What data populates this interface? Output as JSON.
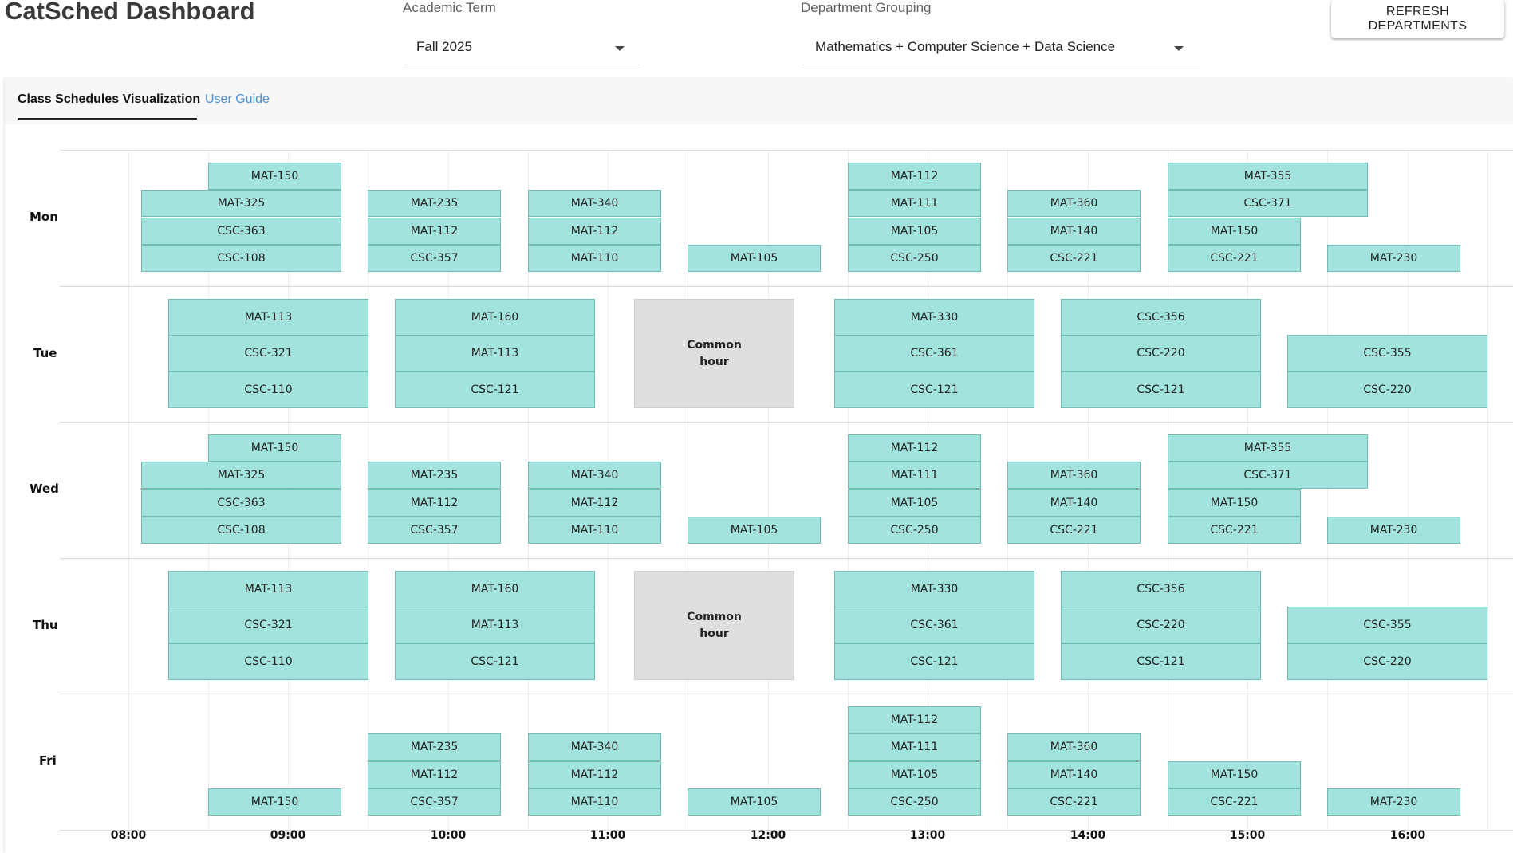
{
  "app": {
    "title": "CatSched Dashboard"
  },
  "filters": {
    "term": {
      "label": "Academic Term",
      "value": "Fall 2025"
    },
    "department": {
      "label": "Department Grouping",
      "value": "Mathematics + Computer Science + Data Science"
    }
  },
  "refresh_label": "REFRESH DEPARTMENTS",
  "tabs": [
    {
      "label": "Class Schedules Visualization",
      "active": true
    },
    {
      "label": "User Guide",
      "active": false
    }
  ],
  "colors": {
    "class_block": "#a3e3dd",
    "common_hour": "#dedede",
    "link": "#4a90d9"
  },
  "chart_data": {
    "type": "timeline",
    "x_ticks": [
      "08:00",
      "09:00",
      "10:00",
      "11:00",
      "12:00",
      "13:00",
      "14:00",
      "15:00",
      "16:00"
    ],
    "x_range": [
      "07:35",
      "16:50"
    ],
    "days": [
      {
        "name": "Mon",
        "slots": 4,
        "blocks": [
          {
            "course": "MAT-150",
            "start": "08:30",
            "end": "09:20",
            "slot": 0
          },
          {
            "course": "MAT-325",
            "start": "08:05",
            "end": "09:20",
            "slot": 1
          },
          {
            "course": "CSC-363",
            "start": "08:05",
            "end": "09:20",
            "slot": 2
          },
          {
            "course": "CSC-108",
            "start": "08:05",
            "end": "09:20",
            "slot": 3
          },
          {
            "course": "MAT-235",
            "start": "09:30",
            "end": "10:20",
            "slot": 1
          },
          {
            "course": "MAT-112",
            "start": "09:30",
            "end": "10:20",
            "slot": 2
          },
          {
            "course": "CSC-357",
            "start": "09:30",
            "end": "10:20",
            "slot": 3
          },
          {
            "course": "MAT-340",
            "start": "10:30",
            "end": "11:20",
            "slot": 1
          },
          {
            "course": "MAT-112",
            "start": "10:30",
            "end": "11:20",
            "slot": 2
          },
          {
            "course": "MAT-110",
            "start": "10:30",
            "end": "11:20",
            "slot": 3
          },
          {
            "course": "MAT-105",
            "start": "11:30",
            "end": "12:20",
            "slot": 3
          },
          {
            "course": "MAT-112",
            "start": "12:30",
            "end": "13:20",
            "slot": 0
          },
          {
            "course": "MAT-111",
            "start": "12:30",
            "end": "13:20",
            "slot": 1
          },
          {
            "course": "MAT-105",
            "start": "12:30",
            "end": "13:20",
            "slot": 2
          },
          {
            "course": "CSC-250",
            "start": "12:30",
            "end": "13:20",
            "slot": 3
          },
          {
            "course": "MAT-360",
            "start": "13:30",
            "end": "14:20",
            "slot": 1
          },
          {
            "course": "MAT-140",
            "start": "13:30",
            "end": "14:20",
            "slot": 2
          },
          {
            "course": "CSC-221",
            "start": "13:30",
            "end": "14:20",
            "slot": 3
          },
          {
            "course": "MAT-355",
            "start": "14:30",
            "end": "15:45",
            "slot": 0
          },
          {
            "course": "CSC-371",
            "start": "14:30",
            "end": "15:45",
            "slot": 1
          },
          {
            "course": "MAT-150",
            "start": "14:30",
            "end": "15:20",
            "slot": 2
          },
          {
            "course": "CSC-221",
            "start": "14:30",
            "end": "15:20",
            "slot": 3
          },
          {
            "course": "MAT-230",
            "start": "15:30",
            "end": "16:20",
            "slot": 3
          }
        ]
      },
      {
        "name": "Tue",
        "slots": 3,
        "common": {
          "label": "Common hour",
          "start": "11:10",
          "end": "12:10"
        },
        "blocks": [
          {
            "course": "MAT-113",
            "start": "08:15",
            "end": "09:30",
            "slot": 0
          },
          {
            "course": "CSC-321",
            "start": "08:15",
            "end": "09:30",
            "slot": 1
          },
          {
            "course": "CSC-110",
            "start": "08:15",
            "end": "09:30",
            "slot": 2
          },
          {
            "course": "MAT-160",
            "start": "09:40",
            "end": "10:55",
            "slot": 0
          },
          {
            "course": "MAT-113",
            "start": "09:40",
            "end": "10:55",
            "slot": 1
          },
          {
            "course": "CSC-121",
            "start": "09:40",
            "end": "10:55",
            "slot": 2
          },
          {
            "course": "MAT-330",
            "start": "12:25",
            "end": "13:40",
            "slot": 0
          },
          {
            "course": "CSC-361",
            "start": "12:25",
            "end": "13:40",
            "slot": 1
          },
          {
            "course": "CSC-121",
            "start": "12:25",
            "end": "13:40",
            "slot": 2
          },
          {
            "course": "CSC-356",
            "start": "13:50",
            "end": "15:05",
            "slot": 0
          },
          {
            "course": "CSC-220",
            "start": "13:50",
            "end": "15:05",
            "slot": 1
          },
          {
            "course": "CSC-121",
            "start": "13:50",
            "end": "15:05",
            "slot": 2
          },
          {
            "course": "CSC-355",
            "start": "15:15",
            "end": "16:30",
            "slot": 1
          },
          {
            "course": "CSC-220",
            "start": "15:15",
            "end": "16:30",
            "slot": 2
          }
        ]
      },
      {
        "name": "Wed",
        "slots": 4,
        "blocks": [
          {
            "course": "MAT-150",
            "start": "08:30",
            "end": "09:20",
            "slot": 0
          },
          {
            "course": "MAT-325",
            "start": "08:05",
            "end": "09:20",
            "slot": 1
          },
          {
            "course": "CSC-363",
            "start": "08:05",
            "end": "09:20",
            "slot": 2
          },
          {
            "course": "CSC-108",
            "start": "08:05",
            "end": "09:20",
            "slot": 3
          },
          {
            "course": "MAT-235",
            "start": "09:30",
            "end": "10:20",
            "slot": 1
          },
          {
            "course": "MAT-112",
            "start": "09:30",
            "end": "10:20",
            "slot": 2
          },
          {
            "course": "CSC-357",
            "start": "09:30",
            "end": "10:20",
            "slot": 3
          },
          {
            "course": "MAT-340",
            "start": "10:30",
            "end": "11:20",
            "slot": 1
          },
          {
            "course": "MAT-112",
            "start": "10:30",
            "end": "11:20",
            "slot": 2
          },
          {
            "course": "MAT-110",
            "start": "10:30",
            "end": "11:20",
            "slot": 3
          },
          {
            "course": "MAT-105",
            "start": "11:30",
            "end": "12:20",
            "slot": 3
          },
          {
            "course": "MAT-112",
            "start": "12:30",
            "end": "13:20",
            "slot": 0
          },
          {
            "course": "MAT-111",
            "start": "12:30",
            "end": "13:20",
            "slot": 1
          },
          {
            "course": "MAT-105",
            "start": "12:30",
            "end": "13:20",
            "slot": 2
          },
          {
            "course": "CSC-250",
            "start": "12:30",
            "end": "13:20",
            "slot": 3
          },
          {
            "course": "MAT-360",
            "start": "13:30",
            "end": "14:20",
            "slot": 1
          },
          {
            "course": "MAT-140",
            "start": "13:30",
            "end": "14:20",
            "slot": 2
          },
          {
            "course": "CSC-221",
            "start": "13:30",
            "end": "14:20",
            "slot": 3
          },
          {
            "course": "MAT-355",
            "start": "14:30",
            "end": "15:45",
            "slot": 0
          },
          {
            "course": "CSC-371",
            "start": "14:30",
            "end": "15:45",
            "slot": 1
          },
          {
            "course": "MAT-150",
            "start": "14:30",
            "end": "15:20",
            "slot": 2
          },
          {
            "course": "CSC-221",
            "start": "14:30",
            "end": "15:20",
            "slot": 3
          },
          {
            "course": "MAT-230",
            "start": "15:30",
            "end": "16:20",
            "slot": 3
          }
        ]
      },
      {
        "name": "Thu",
        "slots": 3,
        "common": {
          "label": "Common hour",
          "start": "11:10",
          "end": "12:10"
        },
        "blocks": [
          {
            "course": "MAT-113",
            "start": "08:15",
            "end": "09:30",
            "slot": 0
          },
          {
            "course": "CSC-321",
            "start": "08:15",
            "end": "09:30",
            "slot": 1
          },
          {
            "course": "CSC-110",
            "start": "08:15",
            "end": "09:30",
            "slot": 2
          },
          {
            "course": "MAT-160",
            "start": "09:40",
            "end": "10:55",
            "slot": 0
          },
          {
            "course": "MAT-113",
            "start": "09:40",
            "end": "10:55",
            "slot": 1
          },
          {
            "course": "CSC-121",
            "start": "09:40",
            "end": "10:55",
            "slot": 2
          },
          {
            "course": "MAT-330",
            "start": "12:25",
            "end": "13:40",
            "slot": 0
          },
          {
            "course": "CSC-361",
            "start": "12:25",
            "end": "13:40",
            "slot": 1
          },
          {
            "course": "CSC-121",
            "start": "12:25",
            "end": "13:40",
            "slot": 2
          },
          {
            "course": "CSC-356",
            "start": "13:50",
            "end": "15:05",
            "slot": 0
          },
          {
            "course": "CSC-220",
            "start": "13:50",
            "end": "15:05",
            "slot": 1
          },
          {
            "course": "CSC-121",
            "start": "13:50",
            "end": "15:05",
            "slot": 2
          },
          {
            "course": "CSC-355",
            "start": "15:15",
            "end": "16:30",
            "slot": 1
          },
          {
            "course": "CSC-220",
            "start": "15:15",
            "end": "16:30",
            "slot": 2
          }
        ]
      },
      {
        "name": "Fri",
        "slots": 4,
        "blocks": [
          {
            "course": "MAT-150",
            "start": "08:30",
            "end": "09:20",
            "slot": 3
          },
          {
            "course": "MAT-235",
            "start": "09:30",
            "end": "10:20",
            "slot": 1
          },
          {
            "course": "MAT-112",
            "start": "09:30",
            "end": "10:20",
            "slot": 2
          },
          {
            "course": "CSC-357",
            "start": "09:30",
            "end": "10:20",
            "slot": 3
          },
          {
            "course": "MAT-340",
            "start": "10:30",
            "end": "11:20",
            "slot": 1
          },
          {
            "course": "MAT-112",
            "start": "10:30",
            "end": "11:20",
            "slot": 2
          },
          {
            "course": "MAT-110",
            "start": "10:30",
            "end": "11:20",
            "slot": 3
          },
          {
            "course": "MAT-105",
            "start": "11:30",
            "end": "12:20",
            "slot": 3
          },
          {
            "course": "MAT-112",
            "start": "12:30",
            "end": "13:20",
            "slot": 0
          },
          {
            "course": "MAT-111",
            "start": "12:30",
            "end": "13:20",
            "slot": 1
          },
          {
            "course": "MAT-105",
            "start": "12:30",
            "end": "13:20",
            "slot": 2
          },
          {
            "course": "CSC-250",
            "start": "12:30",
            "end": "13:20",
            "slot": 3
          },
          {
            "course": "MAT-360",
            "start": "13:30",
            "end": "14:20",
            "slot": 1
          },
          {
            "course": "MAT-140",
            "start": "13:30",
            "end": "14:20",
            "slot": 2
          },
          {
            "course": "CSC-221",
            "start": "13:30",
            "end": "14:20",
            "slot": 3
          },
          {
            "course": "MAT-150",
            "start": "14:30",
            "end": "15:20",
            "slot": 2
          },
          {
            "course": "CSC-221",
            "start": "14:30",
            "end": "15:20",
            "slot": 3
          },
          {
            "course": "MAT-230",
            "start": "15:30",
            "end": "16:20",
            "slot": 3
          }
        ]
      }
    ]
  }
}
